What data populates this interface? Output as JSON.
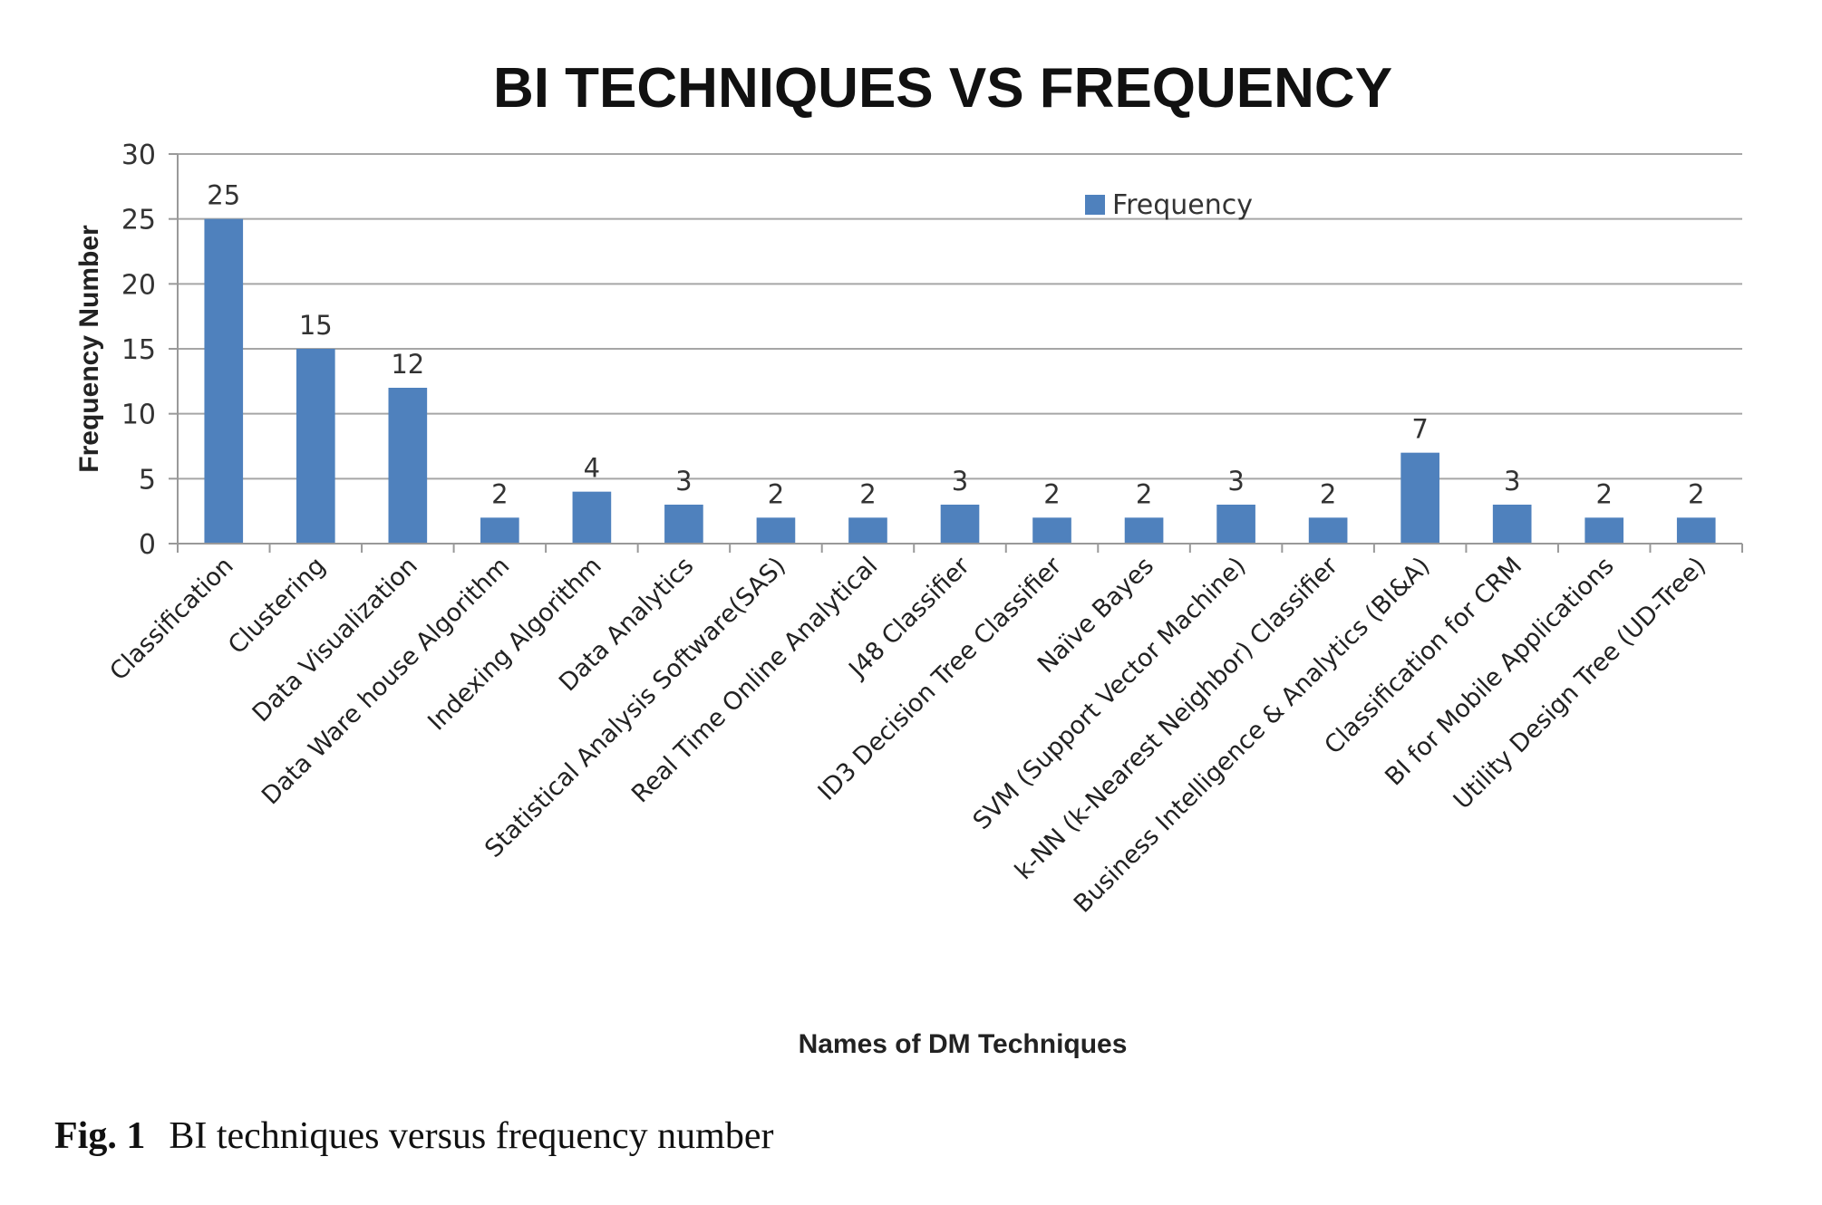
{
  "chart_data": {
    "type": "bar",
    "title": "BI TECHNIQUES VS FREQUENCY",
    "xlabel": "Names of DM Techniques",
    "ylabel": "Frequency Number",
    "ylim": [
      0,
      30
    ],
    "yticks": [
      0,
      5,
      10,
      15,
      20,
      25,
      30
    ],
    "grid": true,
    "legend": {
      "position": "top-center",
      "entries": [
        "Frequency"
      ]
    },
    "bar_color": "#4f81bd",
    "categories": [
      "Classification",
      "Clustering",
      "Data Visualization",
      "Data Ware house Algorithm",
      "Indexing Algorithm",
      "Data Analytics",
      "Statistical Analysis Software(SAS)",
      "Real Time Online Analytical",
      "J48 Classifier",
      "ID3 Decision Tree Classifier",
      "Naïve Bayes",
      "SVM (Support Vector Machine)",
      "k-NN (k-Nearest Neighbor) Classifier",
      "Business Intelligence & Analytics (BI&A)",
      "Classification for CRM",
      "BI for Mobile Applications",
      "Utility Design Tree (UD-Tree)"
    ],
    "series": [
      {
        "name": "Frequency",
        "values": [
          25,
          15,
          12,
          2,
          4,
          3,
          2,
          2,
          3,
          2,
          2,
          3,
          2,
          7,
          3,
          2,
          2
        ]
      }
    ]
  },
  "caption": {
    "label": "Fig. 1",
    "text": "BI techniques versus frequency number"
  }
}
